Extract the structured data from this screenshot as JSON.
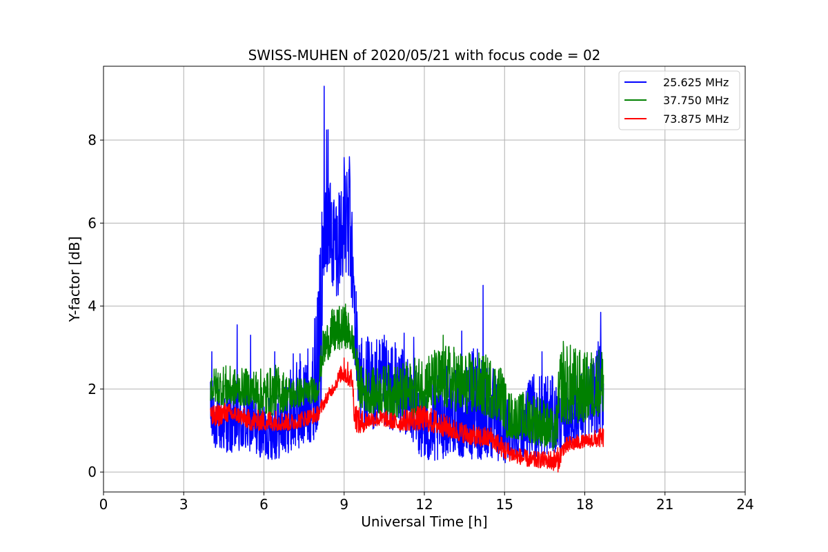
{
  "chart_data": {
    "type": "line",
    "title": "SWISS-MUHEN of 2020/05/21 with focus code = 02",
    "xlabel": "Universal Time [h]",
    "ylabel": "Y-factor [dB]",
    "xlim": [
      0,
      24
    ],
    "ylim": [
      -0.48,
      9.78
    ],
    "xticks": [
      0,
      3,
      6,
      9,
      12,
      15,
      18,
      21,
      24
    ],
    "yticks": [
      0,
      2,
      4,
      6,
      8
    ],
    "grid": true,
    "legend_position": "top-right",
    "series": [
      {
        "name": "25.625 MHz",
        "color": "#0000ff",
        "x": [
          4.0,
          4.5,
          5.0,
          5.5,
          6.0,
          6.5,
          7.0,
          7.5,
          7.9,
          8.15,
          8.25,
          8.5,
          8.75,
          9.0,
          9.25,
          9.45,
          9.6,
          10.0,
          10.5,
          11.0,
          11.5,
          12.0,
          12.5,
          13.0,
          13.5,
          14.0,
          14.5,
          15.0,
          15.5,
          16.0,
          16.5,
          17.0,
          17.5,
          18.0,
          18.7
        ],
        "y_low": [
          0.6,
          0.5,
          0.4,
          0.5,
          0.3,
          0.3,
          0.5,
          0.6,
          0.8,
          1.5,
          5.0,
          4.5,
          4.2,
          4.8,
          4.3,
          2.0,
          1.2,
          1.0,
          1.0,
          1.0,
          0.8,
          0.2,
          0.2,
          0.5,
          0.3,
          0.3,
          0.3,
          0.2,
          0.4,
          0.3,
          0.4,
          0.5,
          0.6,
          0.8,
          1.0
        ],
        "y_high": [
          2.3,
          1.9,
          2.2,
          2.0,
          1.8,
          1.9,
          2.5,
          2.9,
          3.3,
          6.0,
          9.3,
          7.1,
          7.0,
          7.6,
          7.4,
          4.5,
          3.4,
          3.3,
          3.2,
          3.2,
          2.6,
          2.2,
          2.4,
          2.7,
          2.5,
          3.3,
          2.6,
          2.0,
          1.7,
          2.3,
          2.6,
          2.1,
          2.3,
          2.5,
          3.4
        ],
        "y_peaks": [
          [
            4.05,
            2.9
          ],
          [
            5.0,
            3.55
          ],
          [
            5.5,
            3.3
          ],
          [
            6.4,
            2.9
          ],
          [
            7.1,
            2.85
          ],
          [
            7.35,
            2.85
          ],
          [
            7.9,
            3.7
          ],
          [
            8.0,
            4.2
          ],
          [
            8.25,
            9.3
          ],
          [
            8.4,
            8.25
          ],
          [
            9.2,
            7.6
          ],
          [
            10.5,
            3.3
          ],
          [
            11.25,
            3.35
          ],
          [
            11.6,
            3.25
          ],
          [
            13.4,
            3.4
          ],
          [
            14.2,
            4.5
          ],
          [
            16.1,
            2.35
          ],
          [
            16.4,
            2.9
          ],
          [
            18.6,
            3.85
          ]
        ]
      },
      {
        "name": "37.750 MHz",
        "color": "#008000",
        "x": [
          4.0,
          4.5,
          5.0,
          5.5,
          6.0,
          6.5,
          7.0,
          7.5,
          8.0,
          8.2,
          8.5,
          8.75,
          9.0,
          9.25,
          9.4,
          9.6,
          10.0,
          10.5,
          11.0,
          11.5,
          12.0,
          12.5,
          13.0,
          13.5,
          14.0,
          14.5,
          14.9,
          15.1,
          15.5,
          16.0,
          16.5,
          16.9,
          17.1,
          17.5,
          18.0,
          18.7
        ],
        "y_low": [
          1.7,
          1.6,
          1.6,
          1.6,
          1.3,
          1.4,
          1.5,
          1.6,
          1.7,
          2.5,
          2.8,
          2.9,
          3.0,
          2.9,
          2.6,
          1.5,
          1.4,
          1.4,
          1.3,
          1.3,
          1.5,
          1.5,
          1.5,
          1.4,
          1.4,
          1.3,
          1.2,
          0.8,
          0.8,
          0.7,
          0.6,
          0.5,
          1.2,
          1.1,
          1.2,
          1.4
        ],
        "y_high": [
          2.5,
          2.6,
          2.5,
          2.5,
          2.5,
          2.6,
          2.3,
          2.3,
          2.3,
          3.4,
          3.9,
          4.0,
          4.0,
          3.8,
          3.2,
          2.6,
          2.5,
          2.6,
          2.6,
          2.7,
          2.9,
          3.0,
          3.1,
          2.9,
          2.9,
          2.8,
          2.6,
          2.0,
          1.9,
          2.0,
          1.8,
          1.4,
          3.1,
          3.1,
          2.9,
          3.1
        ],
        "y_peaks": [
          [
            9.05,
            4.05
          ],
          [
            12.7,
            3.3
          ],
          [
            17.2,
            3.15
          ]
        ]
      },
      {
        "name": "73.875 MHz",
        "color": "#ff0000",
        "x": [
          4.0,
          4.1,
          4.5,
          5.0,
          5.5,
          6.0,
          6.5,
          7.0,
          7.5,
          8.0,
          8.3,
          8.6,
          8.9,
          9.1,
          9.3,
          9.4,
          9.6,
          10.0,
          10.5,
          11.0,
          11.5,
          12.0,
          12.5,
          13.0,
          13.5,
          14.0,
          14.5,
          15.0,
          15.5,
          16.0,
          16.5,
          17.0,
          17.2,
          17.5,
          18.0,
          18.7
        ],
        "y_low": [
          1.2,
          1.0,
          1.2,
          1.2,
          1.0,
          1.0,
          1.0,
          1.0,
          1.1,
          1.2,
          1.6,
          1.9,
          2.2,
          2.1,
          2.0,
          1.0,
          0.9,
          1.1,
          1.1,
          1.0,
          1.0,
          1.0,
          0.9,
          0.8,
          0.7,
          0.6,
          0.6,
          0.3,
          0.2,
          0.1,
          0.1,
          0.0,
          0.4,
          0.5,
          0.6,
          0.6
        ],
        "y_high": [
          2.0,
          1.6,
          1.7,
          1.6,
          1.5,
          1.5,
          1.5,
          1.4,
          1.5,
          1.6,
          1.9,
          2.2,
          2.6,
          2.7,
          2.5,
          1.8,
          1.5,
          1.5,
          1.5,
          1.4,
          1.6,
          1.6,
          1.5,
          1.3,
          1.2,
          1.1,
          1.1,
          0.8,
          0.6,
          0.5,
          0.5,
          0.6,
          0.8,
          0.9,
          0.9,
          1.1
        ],
        "y_peaks": [
          [
            9.0,
            2.75
          ]
        ]
      }
    ]
  }
}
